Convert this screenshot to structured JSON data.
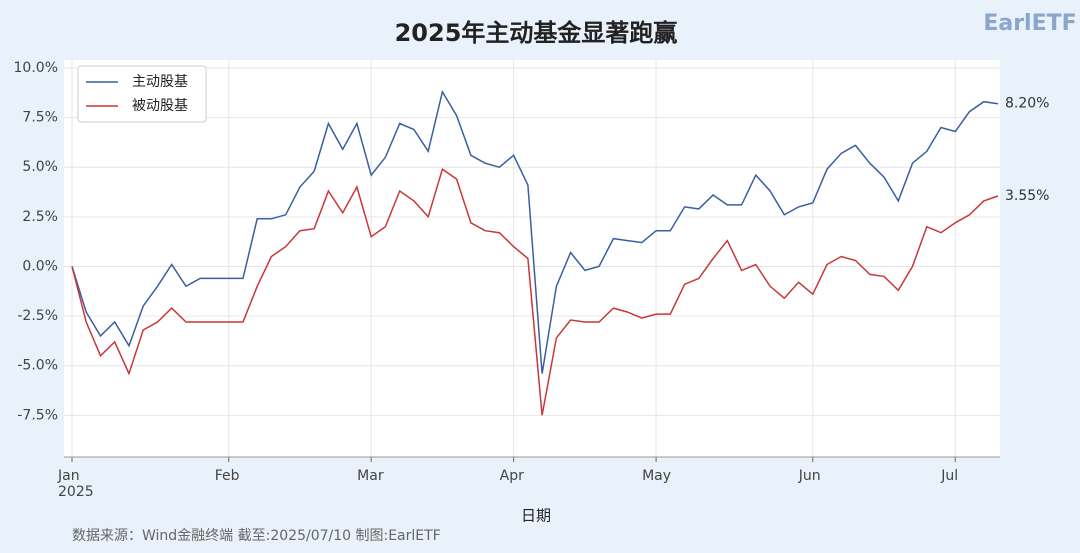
{
  "chart_data": {
    "type": "line",
    "title": "2025年主动基金显著跑赢",
    "logo": "EarlETF",
    "xlabel": "日期",
    "source": "数据来源：Wind金融终端 截至:2025/07/10 制图:EarlETF",
    "categories": [
      "Jan\n2025",
      null,
      null,
      null,
      null,
      null,
      null,
      null,
      null,
      null,
      null,
      "Feb",
      null,
      null,
      null,
      null,
      null,
      null,
      null,
      null,
      null,
      "Mar",
      null,
      null,
      null,
      null,
      null,
      null,
      null,
      null,
      null,
      "Apr",
      null,
      null,
      null,
      null,
      null,
      null,
      null,
      null,
      null,
      "May",
      null,
      null,
      null,
      null,
      null,
      null,
      null,
      null,
      null,
      null,
      "Jun",
      null,
      null,
      null,
      null,
      null,
      null,
      null,
      null,
      null,
      "Jul",
      null,
      null,
      null
    ],
    "series": [
      {
        "name": "主动股基",
        "color": "#3a5fa0",
        "values": [
          0,
          -2.3,
          -3.5,
          -2.8,
          -4.0,
          -2.0,
          -1.0,
          0.1,
          -1.0,
          -0.6,
          -0.6,
          -0.6,
          -0.6,
          2.4,
          2.4,
          2.6,
          4.0,
          4.8,
          7.2,
          5.9,
          7.2,
          4.6,
          5.5,
          7.2,
          6.9,
          5.8,
          8.8,
          7.6,
          5.6,
          5.2,
          5.0,
          5.6,
          4.1,
          -5.4,
          -1.0,
          0.7,
          -0.2,
          0.0,
          1.4,
          1.3,
          1.2,
          1.8,
          1.8,
          3.0,
          2.9,
          3.6,
          3.1,
          3.1,
          4.6,
          3.8,
          2.6,
          3.0,
          3.2,
          4.9,
          5.7,
          6.1,
          5.2,
          4.5,
          3.3,
          5.2,
          5.8,
          7.0,
          6.8,
          7.8,
          8.3,
          8.2
        ],
        "value_labels": [
          null,
          null,
          null,
          null,
          null,
          null,
          null,
          null,
          null,
          null,
          null,
          null,
          null,
          null,
          null,
          null,
          null,
          null,
          null,
          null,
          null,
          null,
          null,
          null,
          null,
          null,
          null,
          null,
          null,
          null,
          null,
          null,
          null,
          null,
          null,
          null,
          null,
          null,
          null,
          null,
          null,
          null,
          null,
          null,
          null,
          null,
          null,
          null,
          null,
          null,
          null,
          null,
          null,
          null,
          null,
          null,
          null,
          null,
          null,
          null,
          null,
          null,
          null,
          null,
          null,
          "8.20%"
        ]
      },
      {
        "name": "被动股基",
        "color": "#c8373a",
        "values": [
          0,
          -2.8,
          -4.5,
          -3.8,
          -5.4,
          -3.2,
          -2.8,
          -2.1,
          -2.8,
          -2.8,
          -2.8,
          -2.8,
          -2.8,
          -1.0,
          0.5,
          1.0,
          1.8,
          1.9,
          3.8,
          2.7,
          4.0,
          1.5,
          2.0,
          3.8,
          3.3,
          2.5,
          4.9,
          4.4,
          2.2,
          1.8,
          1.7,
          1.0,
          0.4,
          -7.5,
          -3.6,
          -2.7,
          -2.8,
          -2.8,
          -2.1,
          -2.3,
          -2.6,
          -2.4,
          -2.4,
          -0.9,
          -0.6,
          0.4,
          1.3,
          -0.2,
          0.1,
          -1.0,
          -1.6,
          -0.8,
          -1.4,
          0.1,
          0.5,
          0.3,
          -0.4,
          -0.5,
          -1.2,
          0.0,
          2.0,
          1.7,
          2.2,
          2.6,
          3.3,
          3.55
        ],
        "value_labels": [
          null,
          null,
          null,
          null,
          null,
          null,
          null,
          null,
          null,
          null,
          null,
          null,
          null,
          null,
          null,
          null,
          null,
          null,
          null,
          null,
          null,
          null,
          null,
          null,
          null,
          null,
          null,
          null,
          null,
          null,
          null,
          null,
          null,
          null,
          null,
          null,
          null,
          null,
          null,
          null,
          null,
          null,
          null,
          null,
          null,
          null,
          null,
          null,
          null,
          null,
          null,
          null,
          null,
          null,
          null,
          null,
          null,
          null,
          null,
          null,
          null,
          null,
          null,
          null,
          null,
          "3.55%"
        ]
      }
    ],
    "ylim": [
      -9.6,
      10.4
    ],
    "yticks": [
      {
        "value": -7.5,
        "label": "-7.5%"
      },
      {
        "value": -5,
        "label": "-5.0%"
      },
      {
        "value": -2.5,
        "label": "-2.5%"
      },
      {
        "value": 0,
        "label": "0.0%"
      },
      {
        "value": 2.5,
        "label": "2.5%"
      },
      {
        "value": 5,
        "label": "5.0%"
      },
      {
        "value": 7.5,
        "label": "7.5%"
      },
      {
        "value": 10,
        "label": "10.0%"
      }
    ],
    "grid": true,
    "legend": "upper left"
  }
}
